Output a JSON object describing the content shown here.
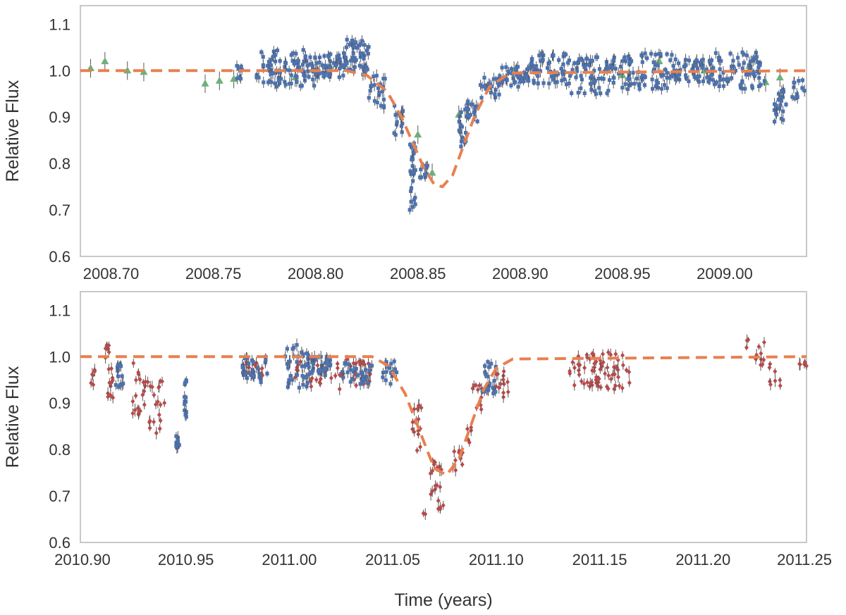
{
  "colors": {
    "model": "#e8804f",
    "series_blue": "#4c72b0",
    "series_green": "#6fb07a",
    "series_red": "#b54b4b",
    "frame": "#c8c8c8",
    "errorbar": "#555555"
  },
  "chart_data": [
    {
      "type": "scatter",
      "title": "",
      "xlabel": "",
      "ylabel": "Relative Flux",
      "xlim": [
        2008.685,
        2009.04
      ],
      "ylim": [
        0.6,
        1.14
      ],
      "grid": false,
      "xticks": [
        2008.7,
        2008.75,
        2008.8,
        2008.85,
        2008.9,
        2008.95,
        2009.0
      ],
      "xtick_labels": [
        "2008.70",
        "2008.75",
        "2008.80",
        "2008.85",
        "2008.90",
        "2008.95",
        "2009.00"
      ],
      "yticks": [
        0.6,
        0.7,
        0.8,
        0.9,
        1.0,
        1.1
      ],
      "ytick_labels": [
        "0.6",
        "0.7",
        "0.8",
        "0.9",
        "1.0",
        "1.1"
      ],
      "model": {
        "style": "dashed",
        "baseline": 1.0,
        "x": [
          2008.685,
          2008.815,
          2008.825,
          2008.835,
          2008.842,
          2008.848,
          2008.853,
          2008.858,
          2008.862,
          2008.867,
          2008.872,
          2008.878,
          2008.885,
          2008.895,
          2009.04
        ],
        "y": [
          1.0,
          1.0,
          0.99,
          0.955,
          0.9,
          0.84,
          0.79,
          0.755,
          0.75,
          0.775,
          0.835,
          0.905,
          0.965,
          0.995,
          1.0
        ]
      },
      "series": [
        {
          "marker": "triangle",
          "color": "green",
          "x": [
            2008.69,
            2008.697,
            2008.708,
            2008.716,
            2008.746,
            2008.753,
            2008.76,
            2008.79,
            2008.8,
            2008.807,
            2008.818,
            2008.842,
            2008.85,
            2008.857,
            2008.87,
            2008.897,
            2008.95,
            2008.968,
            2008.99,
            2009.012,
            2009.02,
            2009.027
          ],
          "y": [
            1.005,
            1.02,
            1.0,
            0.997,
            0.972,
            0.978,
            0.982,
            0.985,
            1.0,
            1.01,
            1.025,
            0.905,
            0.862,
            0.78,
            0.905,
            1.0,
            0.99,
            1.02,
            1.0,
            1.01,
            0.975,
            0.985
          ],
          "err": [
            0.02,
            0.02,
            0.02,
            0.02,
            0.02,
            0.02,
            0.02,
            0.02,
            0.02,
            0.02,
            0.02,
            0.02,
            0.02,
            0.02,
            0.02,
            0.02,
            0.02,
            0.02,
            0.02,
            0.02,
            0.02,
            0.02
          ]
        },
        {
          "marker": "square",
          "color": "blue",
          "clusters": [
            {
              "x": [
                2008.761,
                2008.764
              ],
              "y": [
                0.975,
                1.015
              ],
              "n": 8
            },
            {
              "x": [
                2008.771,
                2008.8
              ],
              "y": [
                0.965,
                1.045
              ],
              "n": 90
            },
            {
              "x": [
                2008.8,
                2008.815
              ],
              "y": [
                0.985,
                1.04
              ],
              "n": 50
            },
            {
              "x": [
                2008.815,
                2008.826
              ],
              "y": [
                0.99,
                1.07
              ],
              "n": 45
            },
            {
              "x": [
                2008.826,
                2008.834
              ],
              "y": [
                0.92,
                0.99
              ],
              "n": 22
            },
            {
              "x": [
                2008.838,
                2008.843
              ],
              "y": [
                0.86,
                0.93
              ],
              "n": 14
            },
            {
              "x": [
                2008.846,
                2008.849
              ],
              "y": [
                0.7,
                0.86
              ],
              "n": 26
            },
            {
              "x": [
                2008.851,
                2008.856
              ],
              "y": [
                0.77,
                0.8
              ],
              "n": 10
            },
            {
              "x": [
                2008.87,
                2008.874
              ],
              "y": [
                0.83,
                0.92
              ],
              "n": 18
            },
            {
              "x": [
                2008.874,
                2008.88
              ],
              "y": [
                0.89,
                0.94
              ],
              "n": 16
            },
            {
              "x": [
                2008.88,
                2008.89
              ],
              "y": [
                0.94,
                0.985
              ],
              "n": 22
            },
            {
              "x": [
                2008.89,
                2008.905
              ],
              "y": [
                0.965,
                1.01
              ],
              "n": 40
            },
            {
              "x": [
                2008.905,
                2008.925
              ],
              "y": [
                0.97,
                1.04
              ],
              "n": 60
            },
            {
              "x": [
                2008.925,
                2008.95
              ],
              "y": [
                0.95,
                1.03
              ],
              "n": 70
            },
            {
              "x": [
                2008.95,
                2008.975
              ],
              "y": [
                0.96,
                1.04
              ],
              "n": 70
            },
            {
              "x": [
                2008.975,
                2008.995
              ],
              "y": [
                0.975,
                1.025
              ],
              "n": 60
            },
            {
              "x": [
                2008.995,
                2009.02
              ],
              "y": [
                0.96,
                1.04
              ],
              "n": 70
            },
            {
              "x": [
                2009.024,
                2009.03
              ],
              "y": [
                0.89,
                0.96
              ],
              "n": 22
            },
            {
              "x": [
                2009.033,
                2009.04
              ],
              "y": [
                0.94,
                0.98
              ],
              "n": 12
            }
          ]
        }
      ]
    },
    {
      "type": "scatter",
      "title": "",
      "xlabel": "Time (years)",
      "ylabel": "Relative Flux",
      "xlim": [
        2010.899,
        2011.25
      ],
      "ylim": [
        0.6,
        1.14
      ],
      "grid": false,
      "xticks": [
        2010.9,
        2010.95,
        2011.0,
        2011.05,
        2011.1,
        2011.15,
        2011.2,
        2011.25
      ],
      "xtick_labels": [
        "2010.90",
        "2010.95",
        "2011.00",
        "2011.05",
        "2011.10",
        "2011.15",
        "2011.20",
        "2011.25"
      ],
      "yticks": [
        0.6,
        0.7,
        0.8,
        0.9,
        1.0,
        1.1
      ],
      "ytick_labels": [
        "0.6",
        "0.7",
        "0.8",
        "0.9",
        "1.0",
        "1.1"
      ],
      "model": {
        "style": "dashed",
        "baseline": 1.0,
        "x": [
          2010.899,
          2011.04,
          2011.048,
          2011.056,
          2011.063,
          2011.07,
          2011.076,
          2011.082,
          2011.088,
          2011.094,
          2011.1,
          2011.108,
          2011.25
        ],
        "y": [
          1.0,
          1.0,
          0.98,
          0.92,
          0.84,
          0.76,
          0.745,
          0.78,
          0.855,
          0.93,
          0.975,
          0.995,
          1.0
        ]
      },
      "series": [
        {
          "marker": "diamond",
          "color": "red",
          "clusters": [
            {
              "x": [
                2010.904,
                2010.906
              ],
              "y": [
                0.935,
                0.975
              ],
              "n": 6
            },
            {
              "x": [
                2010.911,
                2010.915
              ],
              "y": [
                0.91,
                1.03
              ],
              "n": 18
            },
            {
              "x": [
                2010.924,
                2010.928
              ],
              "y": [
                0.87,
                0.99
              ],
              "n": 14
            },
            {
              "x": [
                2010.929,
                2010.94
              ],
              "y": [
                0.83,
                0.95
              ],
              "n": 26
            },
            {
              "x": [
                2010.977,
                2010.987
              ],
              "y": [
                0.955,
                0.995
              ],
              "n": 14
            },
            {
              "x": [
                2011.0,
                2011.04
              ],
              "y": [
                0.93,
                0.995
              ],
              "n": 55
            },
            {
              "x": [
                2011.059,
                2011.064
              ],
              "y": [
                0.79,
                0.9
              ],
              "n": 16
            },
            {
              "x": [
                2011.064,
                2011.066
              ],
              "y": [
                0.66,
                0.665
              ],
              "n": 2
            },
            {
              "x": [
                2011.068,
                2011.075
              ],
              "y": [
                0.67,
                0.78
              ],
              "n": 20
            },
            {
              "x": [
                2011.079,
                2011.084
              ],
              "y": [
                0.75,
                0.8
              ],
              "n": 10
            },
            {
              "x": [
                2011.085,
                2011.088
              ],
              "y": [
                0.81,
                0.85
              ],
              "n": 5
            },
            {
              "x": [
                2011.088,
                2011.093
              ],
              "y": [
                0.88,
                0.94
              ],
              "n": 10
            },
            {
              "x": [
                2011.099,
                2011.106
              ],
              "y": [
                0.91,
                0.97
              ],
              "n": 14
            },
            {
              "x": [
                2011.135,
                2011.165
              ],
              "y": [
                0.93,
                1.01
              ],
              "n": 70
            },
            {
              "x": [
                2011.221,
                2011.23
              ],
              "y": [
                0.98,
                1.04
              ],
              "n": 12
            },
            {
              "x": [
                2011.232,
                2011.238
              ],
              "y": [
                0.93,
                0.99
              ],
              "n": 8
            },
            {
              "x": [
                2011.246,
                2011.25
              ],
              "y": [
                0.97,
                1.02
              ],
              "n": 5
            }
          ]
        },
        {
          "marker": "square",
          "color": "blue",
          "clusters": [
            {
              "x": [
                2010.916,
                2010.92
              ],
              "y": [
                0.93,
                0.985
              ],
              "n": 14
            },
            {
              "x": [
                2010.945,
                2010.947
              ],
              "y": [
                0.8,
                0.83
              ],
              "n": 9
            },
            {
              "x": [
                2010.949,
                2010.951
              ],
              "y": [
                0.87,
                0.96
              ],
              "n": 14
            },
            {
              "x": [
                2010.977,
                2010.99
              ],
              "y": [
                0.94,
                1.0
              ],
              "n": 30
            },
            {
              "x": [
                2010.998,
                2011.01
              ],
              "y": [
                0.93,
                1.035
              ],
              "n": 40
            },
            {
              "x": [
                2011.01,
                2011.02
              ],
              "y": [
                0.96,
                1.0
              ],
              "n": 30
            },
            {
              "x": [
                2011.025,
                2011.04
              ],
              "y": [
                0.94,
                0.99
              ],
              "n": 30
            },
            {
              "x": [
                2011.045,
                2011.052
              ],
              "y": [
                0.94,
                0.99
              ],
              "n": 16
            },
            {
              "x": [
                2011.093,
                2011.1
              ],
              "y": [
                0.92,
                0.99
              ],
              "n": 20
            }
          ]
        }
      ]
    }
  ]
}
